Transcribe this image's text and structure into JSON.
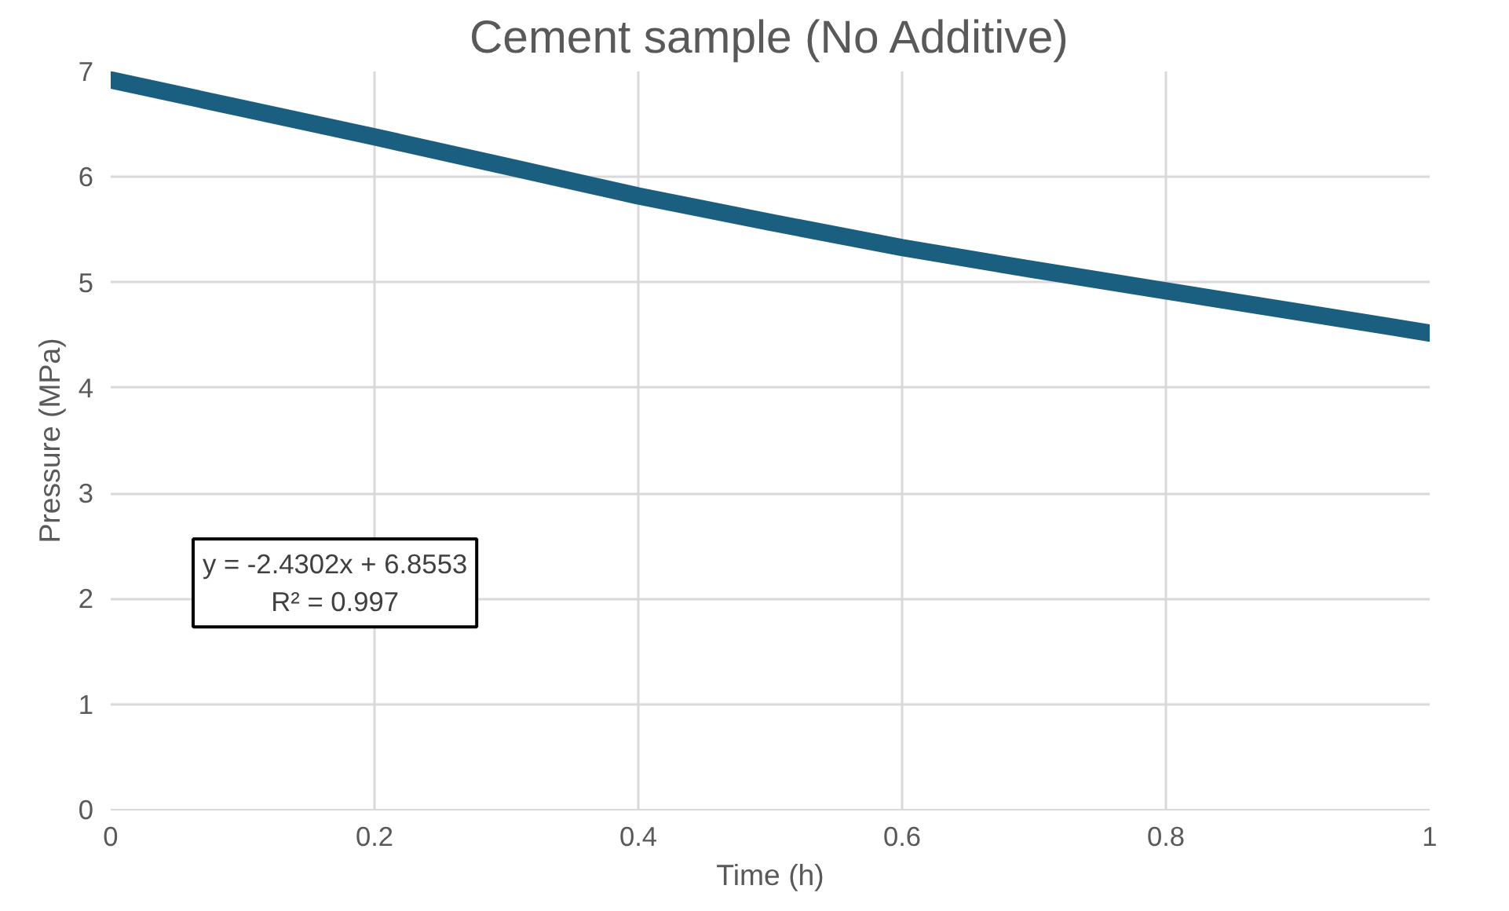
{
  "chart_data": {
    "type": "line",
    "title": "Cement sample (No Additive)",
    "xlabel": "Time (h)",
    "ylabel": "Pressure (MPa)",
    "x": [
      0,
      0.1,
      0.2,
      0.3,
      0.4,
      0.5,
      0.6,
      0.7,
      0.8,
      0.9,
      1
    ],
    "series": [
      {
        "color": "#1a5e80",
        "values": [
          6.92,
          6.65,
          6.38,
          6.1,
          5.82,
          5.57,
          5.33,
          5.12,
          4.92,
          4.72,
          4.52
        ]
      }
    ],
    "xlim": [
      0,
      1
    ],
    "ylim": [
      0,
      7
    ],
    "xticks": [
      0,
      0.2,
      0.4,
      0.6,
      0.8,
      1
    ],
    "yticks": [
      0,
      1,
      2,
      3,
      4,
      5,
      6,
      7
    ],
    "grid": true,
    "marker": "none",
    "line_style": "solid",
    "annotations": [
      "y = -2.4302x + 6.8553\nR² = 0.997"
    ]
  }
}
